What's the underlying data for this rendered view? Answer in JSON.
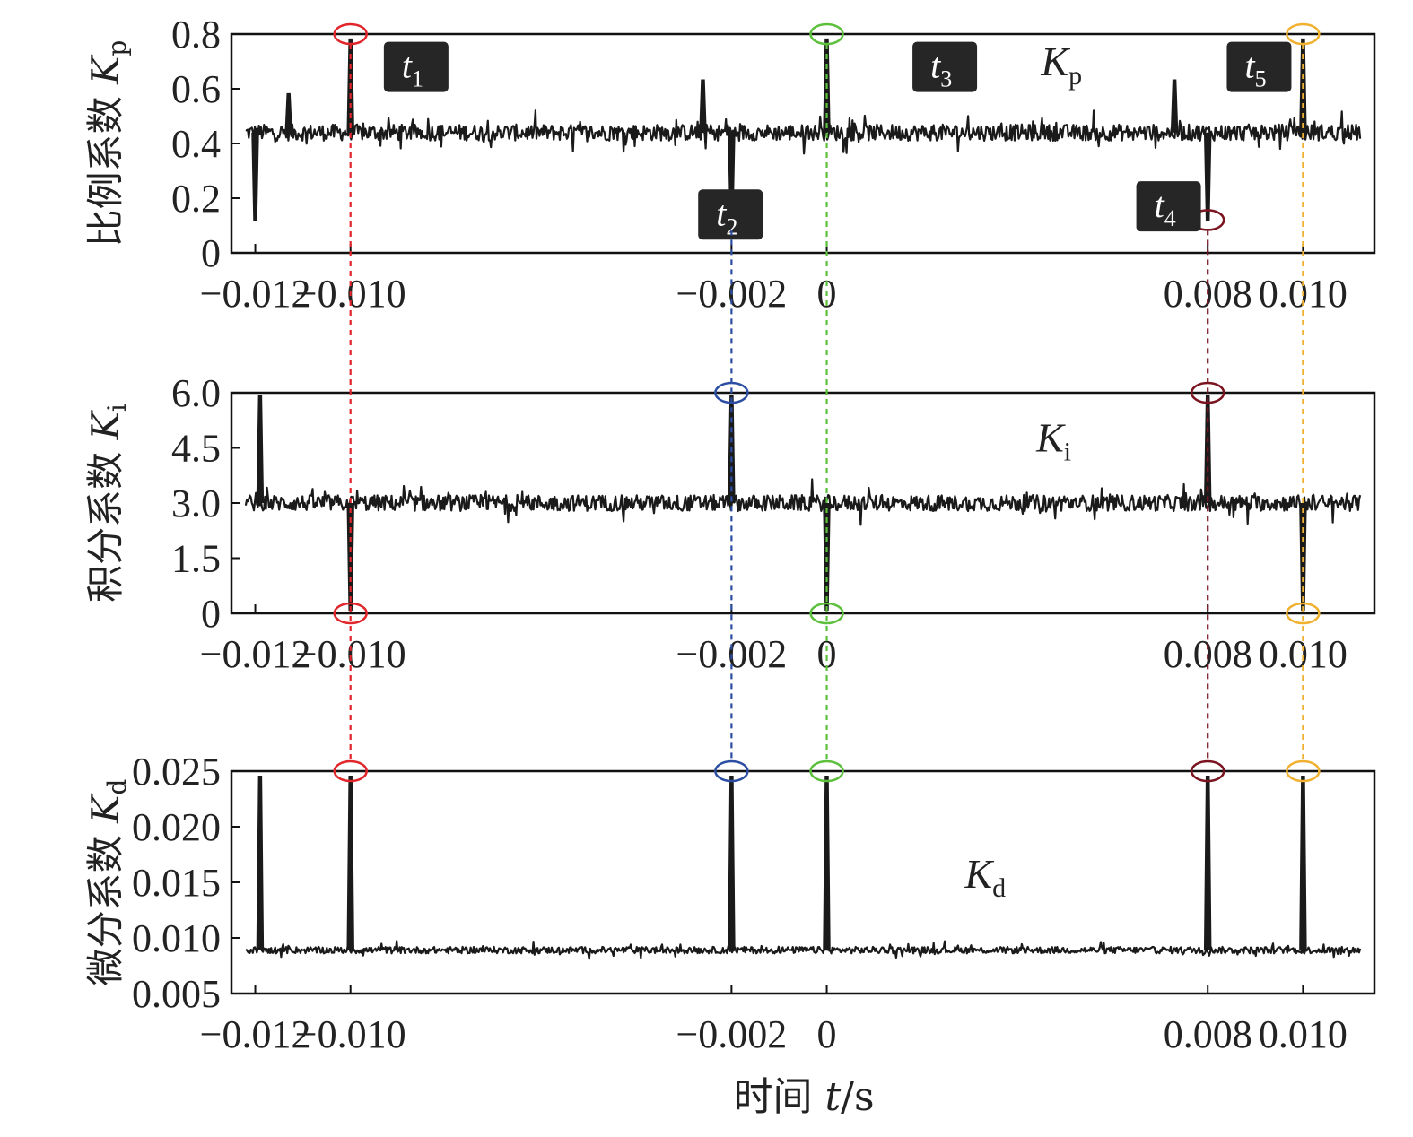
{
  "chart_data": {
    "type": "line",
    "xlabel": "时间 t/s",
    "x_ticks": [
      -0.012,
      -0.01,
      -0.002,
      0,
      0.008,
      0.01
    ],
    "x_tick_labels": [
      "−0.012",
      "−0.010",
      "−0.002",
      "0",
      "0.008",
      "0.010"
    ],
    "xlim": [
      -0.0125,
      0.0115
    ],
    "event_times": [
      -0.01,
      -0.002,
      0,
      0.008,
      0.01
    ],
    "event_colors": [
      "#e0262b",
      "#2b4ea2",
      "#5cc03c",
      "#7a1420",
      "#f0b030"
    ],
    "panels": [
      {
        "name": "Kp",
        "ylabel": "比例系数 Kp",
        "ylim": [
          0,
          0.8
        ],
        "y_ticks": [
          0,
          0.2,
          0.4,
          0.6,
          0.8
        ],
        "y_tick_labels": [
          "0",
          "0.2",
          "0.4",
          "0.6",
          "0.8"
        ],
        "series_label": "Kp",
        "series_label_pos": [
          0.0045,
          0.65
        ],
        "baseline": 0.44,
        "noise": 0.03,
        "spikes": [
          {
            "x": -0.012,
            "y": 0.12
          },
          {
            "x": -0.01,
            "y": 0.78
          },
          {
            "x": -0.002,
            "y": 0.12
          },
          {
            "x": 0.0,
            "y": 0.78
          },
          {
            "x": 0.008,
            "y": 0.12
          },
          {
            "x": 0.01,
            "y": 0.78
          },
          {
            "x": -0.0026,
            "y": 0.63
          },
          {
            "x": 0.0073,
            "y": 0.63
          },
          {
            "x": -0.0113,
            "y": 0.58
          }
        ],
        "event_markers_y": [
          0.8,
          0.12,
          0.8,
          0.12,
          0.8
        ],
        "badges": [
          {
            "label": "t",
            "sub": "1",
            "x": -0.0093,
            "y": 0.68
          },
          {
            "label": "t",
            "sub": "2",
            "x": -0.0027,
            "y": 0.14
          },
          {
            "label": "t",
            "sub": "3",
            "x": 0.0018,
            "y": 0.68
          },
          {
            "label": "t",
            "sub": "4",
            "x": 0.0065,
            "y": 0.17
          },
          {
            "label": "t",
            "sub": "5",
            "x": 0.0084,
            "y": 0.68
          }
        ]
      },
      {
        "name": "Ki",
        "ylabel": "积分系数 Ki",
        "ylim": [
          0,
          6.0
        ],
        "y_ticks": [
          0,
          1.5,
          3.0,
          4.5,
          6.0
        ],
        "y_tick_labels": [
          "0",
          "1.5",
          "3.0",
          "4.5",
          "6.0"
        ],
        "series_label": "Ki",
        "series_label_pos": [
          0.0044,
          4.4
        ],
        "baseline": 3.0,
        "noise": 0.22,
        "spikes": [
          {
            "x": -0.0119,
            "y": 5.9
          },
          {
            "x": -0.01,
            "y": 0.1
          },
          {
            "x": -0.002,
            "y": 5.9
          },
          {
            "x": 0.0,
            "y": 0.1
          },
          {
            "x": 0.008,
            "y": 5.9
          },
          {
            "x": 0.01,
            "y": 0.1
          }
        ],
        "event_markers_y": [
          0.0,
          6.0,
          0.0,
          6.0,
          0.0
        ],
        "badges": []
      },
      {
        "name": "Kd",
        "ylabel": "微分系数 Kd",
        "ylim": [
          0.005,
          0.025
        ],
        "y_ticks": [
          0.005,
          0.01,
          0.015,
          0.02,
          0.025
        ],
        "y_tick_labels": [
          "0.005",
          "0.010",
          "0.015",
          "0.020",
          "0.025"
        ],
        "series_label": "Kd",
        "series_label_pos": [
          0.0029,
          0.0145
        ],
        "baseline": 0.0089,
        "noise": 0.0003,
        "spikes": [
          {
            "x": -0.0119,
            "y": 0.0245
          },
          {
            "x": -0.01,
            "y": 0.0245
          },
          {
            "x": -0.002,
            "y": 0.0245
          },
          {
            "x": 0.0,
            "y": 0.0245
          },
          {
            "x": 0.008,
            "y": 0.0245
          },
          {
            "x": 0.01,
            "y": 0.0245
          }
        ],
        "event_markers_y": [
          0.025,
          0.025,
          0.025,
          0.025,
          0.025
        ],
        "badges": []
      }
    ]
  }
}
